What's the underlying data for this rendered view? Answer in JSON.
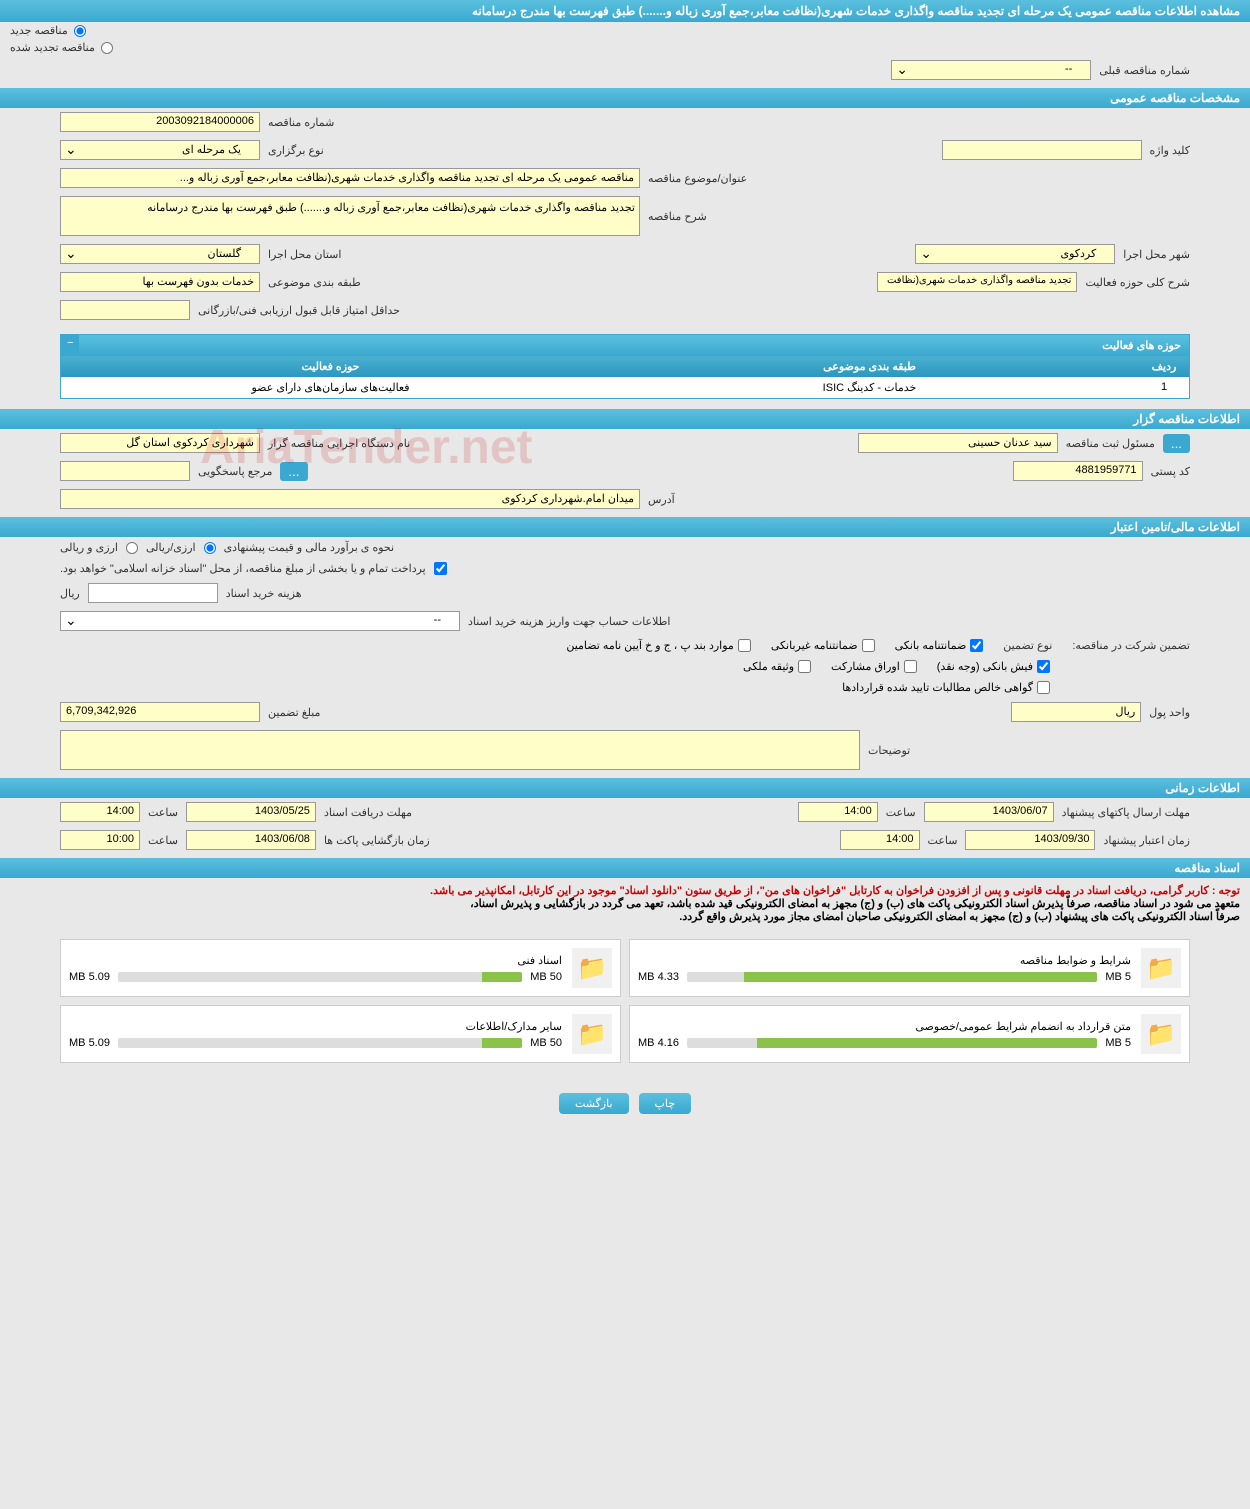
{
  "header_title": "مشاهده اطلاعات مناقصه عمومی یک مرحله ای تجدید مناقصه واگذاری خدمات شهری(نظافت معابر،جمع آوری زباله و.......) طبق فهرست بها مندرج درسامانه",
  "radio_new": "مناقصه جدید",
  "radio_renewed": "مناقصه تجدید شده",
  "prev_tender_label": "شماره مناقصه قبلی",
  "prev_tender_value": "--",
  "section_general": "مشخصات مناقصه عمومی",
  "tender_number_label": "شماره مناقصه",
  "tender_number": "2003092184000006",
  "hold_type_label": "نوع برگزاری",
  "hold_type": "یک مرحله ای",
  "keyword_label": "کلید واژه",
  "keyword_value": "",
  "subject_label": "عنوان/موضوع مناقصه",
  "subject_value": "مناقصه عمومی یک مرحله ای تجدید مناقصه واگذاری خدمات شهری(نظافت معابر،جمع آوری زباله و...",
  "desc_label": "شرح مناقصه",
  "desc_value": "تجدید مناقصه واگذاری خدمات شهری(نظافت معابر،جمع آوری زباله و.......) طبق فهرست بها مندرج درسامانه",
  "province_label": "استان محل اجرا",
  "province_value": "گلستان",
  "city_label": "شهر محل اجرا",
  "city_value": "کردکوی",
  "subject_class_label": "طبقه بندی موضوعی",
  "subject_class_value": "خدمات بدون فهرست بها",
  "activity_desc_label": "شرح کلی حوزه فعالیت",
  "activity_desc_value": "تجدید مناقصه واگذاری خدمات شهری(نظافت",
  "min_score_label": "حداقل امتیاز قابل قبول ارزیابی فنی/بازرگانی",
  "min_score_value": "",
  "activity_table_title": "حوزه های فعالیت",
  "activity_cols": [
    "ردیف",
    "طبقه بندی موضوعی",
    "حوزه فعالیت"
  ],
  "activity_row": [
    "1",
    "خدمات - کدینگ ISIC",
    "فعالیت‌های سازمان‌های دارای عضو"
  ],
  "section_organizer": "اطلاعات مناقصه گزار",
  "org_name_label": "نام دستگاه اجرایی مناقصه گزار",
  "org_name_value": "شهرداری کردکوی استان گل",
  "registrar_label": "مسئول ثبت مناقصه",
  "registrar_value": "سید عدنان حسینی",
  "contact_label": "مرجع پاسخگویی",
  "contact_value": "",
  "postal_label": "کد پستی",
  "postal_value": "4881959771",
  "address_label": "آدرس",
  "address_value": "میدان امام.شهرداری کردکوی",
  "section_financial": "اطلاعات مالی/تامین اعتبار",
  "estimate_label": "نحوه ی برآورد مالی و قیمت پیشنهادی",
  "estimate_opt1": "ارزی/ریالی",
  "estimate_opt2": "ارزی و ریالی",
  "treasury_text": "پرداخت تمام و یا بخشی از مبلغ مناقصه، از محل \"اسناد خزانه اسلامی\" خواهد بود.",
  "doc_cost_label": "هزینه خرید اسناد",
  "doc_cost_unit": "ریال",
  "doc_cost_value": "",
  "deposit_account_label": "اطلاعات حساب جهت واریز هزینه خرید اسناد",
  "deposit_account_value": "--",
  "guarantee_label": "تضمین شرکت در مناقصه:",
  "guarantee_type_label": "نوع تضمین",
  "gt_bank": "ضمانتنامه بانکی",
  "gt_nonbank": "ضمانتنامه غیربانکی",
  "gt_regulation": "موارد بند پ ، ج و خ آیین نامه تضامین",
  "gt_cash": "فیش بانکی (وجه نقد)",
  "gt_securities": "اوراق مشارکت",
  "gt_property": "وثیقه ملکی",
  "gt_cert": "گواهی خالص مطالبات تایید شده قراردادها",
  "guarantee_amount_label": "مبلغ تضمین",
  "guarantee_amount": "6,709,342,926",
  "currency_label": "واحد پول",
  "currency_value": "ریال",
  "notes_label": "توضیحات",
  "notes_value": "",
  "section_time": "اطلاعات زمانی",
  "receive_deadline_label": "مهلت دریافت اسناد",
  "receive_date": "1403/05/25",
  "receive_time_label": "ساعت",
  "receive_time": "14:00",
  "submit_deadline_label": "مهلت ارسال پاکتهای پیشنهاد",
  "submit_date": "1403/06/07",
  "submit_time": "14:00",
  "open_label": "زمان بازگشایی پاکت ها",
  "open_date": "1403/06/08",
  "open_time": "10:00",
  "validity_label": "زمان اعتبار پیشنهاد",
  "validity_date": "1403/09/30",
  "validity_time": "14:00",
  "section_docs": "اسناد مناقصه",
  "notice_red": "توجه : کاربر گرامی، دریافت اسناد در مهلت قانونی و پس از افزودن فراخوان به کارتابل \"فراخوان های من\"، از طریق ستون \"دانلود اسناد\" موجود در این کارتابل، امکانپذیر می باشد.",
  "notice_black1": "متعهد می شود در اسناد مناقصه، صرفاً پذیرش اسناد الکترونیکی پاکت های (ب) و (ج) مجهز به امضای الکترونیکی قید شده باشد، تعهد می گردد در بازگشایی و پذیرش اسناد،",
  "notice_black2": "صرفاً اسناد الکترونیکی پاکت های پیشنهاد (ب) و (ج) مجهز به امضای الکترونیکی صاحبان امضای مجاز مورد پذیرش واقع گردد.",
  "docs": [
    {
      "title": "شرایط و ضوابط مناقصه",
      "size": "4.33 MB",
      "max": "5 MB",
      "pct": 86
    },
    {
      "title": "اسناد فنی",
      "size": "5.09 MB",
      "max": "50 MB",
      "pct": 10
    },
    {
      "title": "متن قرارداد به انضمام شرایط عمومی/خصوصی",
      "size": "4.16 MB",
      "max": "5 MB",
      "pct": 83
    },
    {
      "title": "سایر مدارک/اطلاعات",
      "size": "5.09 MB",
      "max": "50 MB",
      "pct": 10
    }
  ],
  "btn_print": "چاپ",
  "btn_back": "بازگشت",
  "watermark": "AriaTender.net"
}
